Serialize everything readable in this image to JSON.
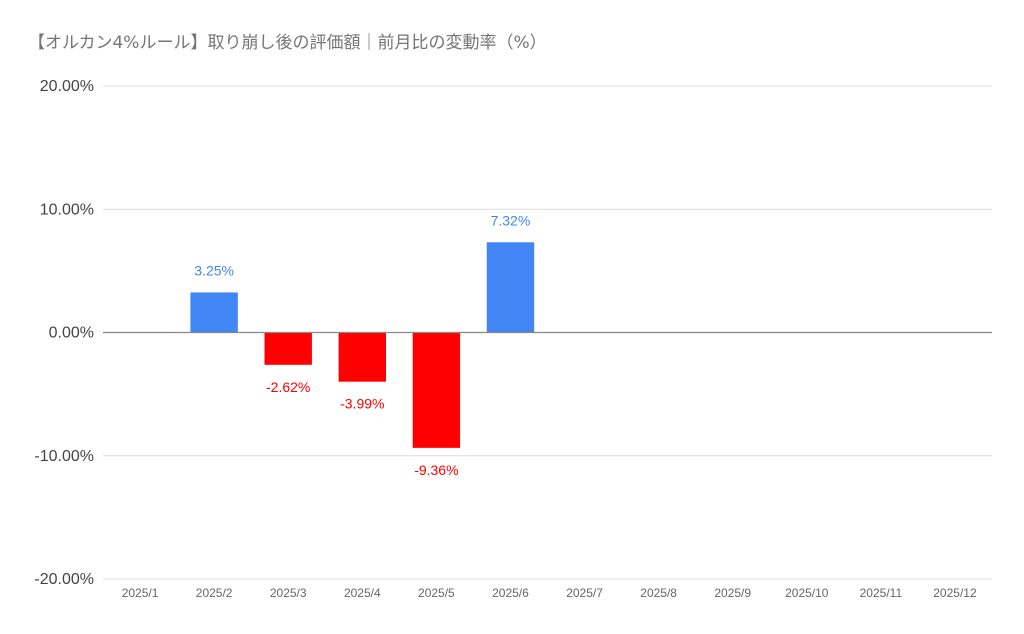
{
  "chart_data": {
    "type": "bar",
    "title": "【オルカン4%ルール】取り崩し後の評価額｜前月比の変動率（%）",
    "xlabel": "",
    "ylabel": "",
    "categories": [
      "2025/1",
      "2025/2",
      "2025/3",
      "2025/4",
      "2025/5",
      "2025/6",
      "2025/7",
      "2025/8",
      "2025/9",
      "2025/10",
      "2025/11",
      "2025/12"
    ],
    "values": [
      null,
      3.25,
      -2.62,
      -3.99,
      -9.36,
      7.32,
      null,
      null,
      null,
      null,
      null,
      null
    ],
    "data_labels": [
      "",
      "3.25%",
      "-2.62%",
      "-3.99%",
      "-9.36%",
      "7.32%",
      "",
      "",
      "",
      "",
      "",
      ""
    ],
    "ylim": [
      -20,
      20
    ],
    "yticks": [
      20,
      10,
      0,
      -10,
      -20
    ],
    "ytick_labels": [
      "20.00%",
      "10.00%",
      "0.00%",
      "-10.00%",
      "-20.00%"
    ],
    "grid": true,
    "legend": "none",
    "colors": {
      "positive": "#4285f4",
      "negative": "#ff0000",
      "grid": "#dddddd",
      "zero_line": "#888888"
    }
  }
}
